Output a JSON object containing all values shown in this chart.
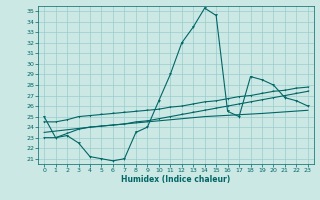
{
  "xlabel": "Humidex (Indice chaleur)",
  "ylabel": "",
  "xlim": [
    -0.5,
    23.5
  ],
  "ylim": [
    20.5,
    35.5
  ],
  "xticks": [
    0,
    1,
    2,
    3,
    4,
    5,
    6,
    7,
    8,
    9,
    10,
    11,
    12,
    13,
    14,
    15,
    16,
    17,
    18,
    19,
    20,
    21,
    22,
    23
  ],
  "yticks": [
    21,
    22,
    23,
    24,
    25,
    26,
    27,
    28,
    29,
    30,
    31,
    32,
    33,
    34,
    35
  ],
  "bg_color": "#cce8e4",
  "grid_color": "#99cccc",
  "line_color": "#006666",
  "line1_x": [
    0,
    1,
    2,
    3,
    4,
    5,
    6,
    7,
    8,
    9,
    10,
    11,
    12,
    13,
    14,
    15,
    16,
    17,
    18,
    19,
    20,
    21,
    22,
    23
  ],
  "line1_y": [
    25.0,
    23.0,
    23.2,
    22.5,
    21.2,
    21.0,
    20.8,
    21.0,
    23.5,
    24.0,
    26.5,
    29.0,
    32.0,
    33.5,
    35.3,
    34.6,
    25.5,
    25.0,
    28.8,
    28.5,
    28.0,
    26.8,
    26.5,
    26.0
  ],
  "line2_x": [
    0,
    1,
    2,
    3,
    4,
    5,
    6,
    7,
    8,
    9,
    10,
    11,
    12,
    13,
    14,
    15,
    16,
    17,
    18,
    19,
    20,
    21,
    22,
    23
  ],
  "line2_y": [
    23.0,
    23.0,
    23.4,
    23.8,
    24.0,
    24.1,
    24.2,
    24.3,
    24.5,
    24.6,
    24.8,
    25.0,
    25.2,
    25.4,
    25.6,
    25.8,
    26.0,
    26.2,
    26.4,
    26.6,
    26.8,
    27.0,
    27.2,
    27.4
  ],
  "line3_x": [
    0,
    1,
    2,
    3,
    4,
    5,
    6,
    7,
    8,
    9,
    10,
    11,
    12,
    13,
    14,
    15,
    16,
    17,
    18,
    19,
    20,
    21,
    22,
    23
  ],
  "line3_y": [
    24.5,
    24.5,
    24.7,
    25.0,
    25.1,
    25.2,
    25.3,
    25.4,
    25.5,
    25.6,
    25.7,
    25.9,
    26.0,
    26.2,
    26.4,
    26.5,
    26.7,
    26.9,
    27.0,
    27.2,
    27.4,
    27.5,
    27.7,
    27.8
  ],
  "line4_x": [
    0,
    4,
    9,
    14,
    19,
    23
  ],
  "line4_y": [
    23.5,
    24.0,
    24.5,
    25.0,
    25.3,
    25.6
  ]
}
